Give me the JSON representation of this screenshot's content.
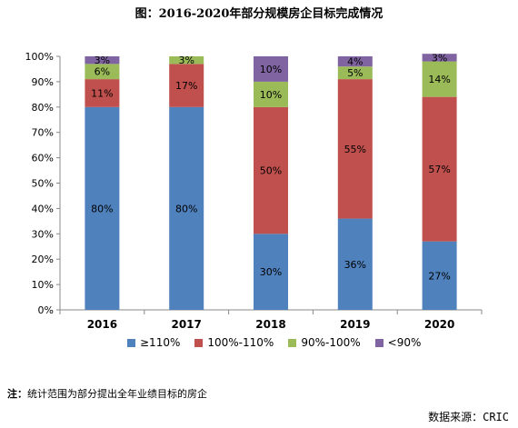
{
  "chart_data": {
    "type": "bar",
    "stacked": true,
    "title": "图：2016-2020年部分规模房企目标完成情况",
    "categories": [
      "2016",
      "2017",
      "2018",
      "2019",
      "2020"
    ],
    "series": [
      {
        "name": "≥110%",
        "color": "#4f81bd",
        "values": [
          80,
          80,
          30,
          36,
          27
        ]
      },
      {
        "name": "100%-110%",
        "color": "#c0504d",
        "values": [
          11,
          17,
          50,
          55,
          57
        ]
      },
      {
        "name": "90%-100%",
        "color": "#9bbb59",
        "values": [
          6,
          3,
          10,
          5,
          14
        ]
      },
      {
        "name": "<90%",
        "color": "#8064a2",
        "values": [
          3,
          0,
          10,
          4,
          3
        ]
      }
    ],
    "ylim": [
      0,
      100
    ],
    "yticks": [
      "0%",
      "10%",
      "20%",
      "30%",
      "40%",
      "50%",
      "60%",
      "70%",
      "80%",
      "90%",
      "100%"
    ],
    "grid": false,
    "legend": "bottom"
  },
  "footer": {
    "note_label": "注：",
    "note_text": "统计范围为部分提出全年业绩目标的房企",
    "source": "数据来源：CRIC"
  }
}
